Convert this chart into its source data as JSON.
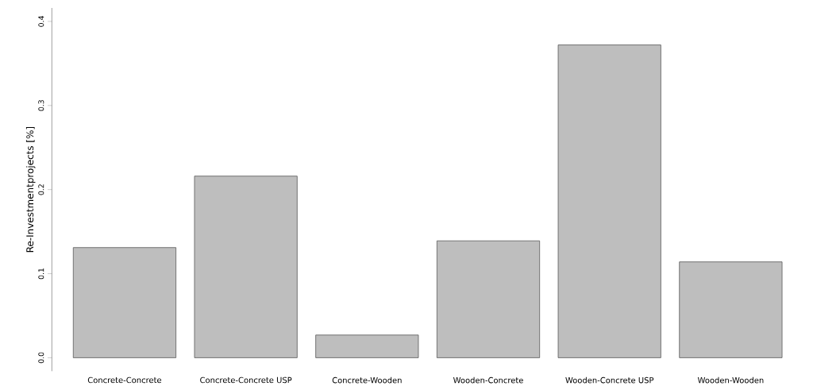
{
  "chart_data": {
    "type": "bar",
    "ylabel": "Re-Investmentprojects [%]",
    "categories": [
      "Concrete-Concrete",
      "Concrete-Concrete USP",
      "Concrete-Wooden",
      "Wooden-Concrete",
      "Wooden-Concrete USP",
      "Wooden-Wooden"
    ],
    "values": [
      0.131,
      0.216,
      0.027,
      0.139,
      0.372,
      0.114
    ],
    "color": "#bebebe",
    "ylim": [
      -0.016,
      0.416
    ],
    "yticks": [
      {
        "value": 0,
        "label": "0.0"
      },
      0.1,
      0.2,
      0.3,
      0.4
    ],
    "grid": false
  }
}
